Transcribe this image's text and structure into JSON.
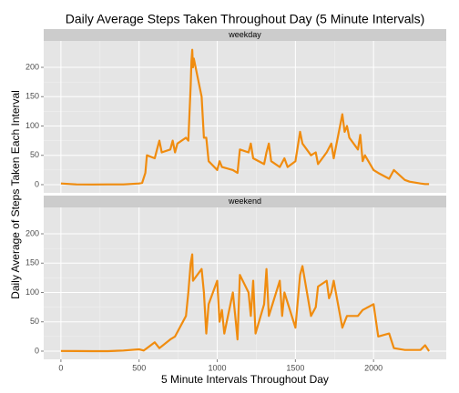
{
  "chart_data": {
    "type": "line",
    "title": "Daily Average Steps Taken Throughout Day (5 Minute Intervals)",
    "x_label": "5 Minute Intervals Throughout Day",
    "y_label": "Daily Average of Steps Taken Each Interval",
    "color": "#f08c0f",
    "xlim": [
      -110,
      2465
    ],
    "xticks": [
      0,
      500,
      1000,
      1500,
      2000
    ],
    "ylim": [
      -14,
      245
    ],
    "yticks": [
      0,
      50,
      100,
      150,
      200
    ],
    "grid": true,
    "facets": [
      {
        "name": "weekday",
        "x": [
          0,
          100,
          200,
          300,
          400,
          500,
          520,
          540,
          550,
          600,
          615,
          630,
          645,
          700,
          715,
          730,
          745,
          800,
          815,
          830,
          835,
          840,
          845,
          850,
          900,
          915,
          930,
          945,
          1000,
          1015,
          1030,
          1100,
          1130,
          1145,
          1200,
          1215,
          1230,
          1300,
          1315,
          1330,
          1345,
          1400,
          1430,
          1450,
          1500,
          1530,
          1545,
          1600,
          1630,
          1645,
          1700,
          1730,
          1745,
          1800,
          1815,
          1830,
          1845,
          1900,
          1915,
          1930,
          1945,
          2000,
          2030,
          2100,
          2130,
          2200,
          2230,
          2300,
          2330,
          2355
        ],
        "values": [
          2,
          0.5,
          0.3,
          0.5,
          0.4,
          2,
          3,
          20,
          50,
          45,
          60,
          75,
          55,
          60,
          75,
          55,
          70,
          80,
          75,
          170,
          210,
          230,
          200,
          215,
          150,
          80,
          80,
          40,
          25,
          40,
          30,
          25,
          20,
          60,
          55,
          70,
          45,
          35,
          55,
          70,
          40,
          30,
          45,
          30,
          40,
          90,
          70,
          50,
          55,
          35,
          55,
          70,
          45,
          120,
          90,
          100,
          80,
          60,
          85,
          40,
          50,
          25,
          20,
          10,
          25,
          8,
          5,
          2,
          1,
          1
        ]
      },
      {
        "name": "weekend",
        "x": [
          0,
          100,
          200,
          300,
          400,
          500,
          530,
          600,
          630,
          700,
          730,
          800,
          815,
          830,
          840,
          845,
          900,
          915,
          930,
          945,
          1000,
          1015,
          1030,
          1045,
          1100,
          1115,
          1130,
          1145,
          1200,
          1215,
          1230,
          1245,
          1300,
          1315,
          1330,
          1400,
          1415,
          1430,
          1500,
          1530,
          1545,
          1600,
          1630,
          1645,
          1700,
          1715,
          1730,
          1745,
          1800,
          1830,
          1900,
          1930,
          2000,
          2030,
          2100,
          2130,
          2200,
          2300,
          2330,
          2355
        ],
        "values": [
          0.2,
          0.1,
          0,
          0,
          1,
          3,
          1,
          15,
          5,
          20,
          25,
          60,
          100,
          150,
          165,
          120,
          140,
          100,
          30,
          80,
          120,
          50,
          70,
          30,
          100,
          60,
          20,
          130,
          100,
          60,
          120,
          30,
          80,
          140,
          60,
          120,
          60,
          100,
          40,
          130,
          145,
          60,
          75,
          110,
          120,
          90,
          100,
          120,
          40,
          60,
          60,
          70,
          80,
          25,
          30,
          5,
          2,
          2,
          10,
          0
        ]
      }
    ]
  }
}
